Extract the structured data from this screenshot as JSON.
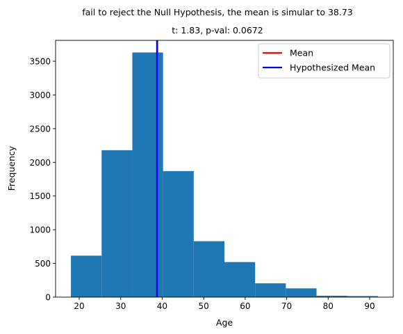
{
  "chart_data": {
    "type": "bar",
    "suptitle": "fail to reject the Null Hypothesis, the mean is simular to 38.73",
    "title": "t: 1.83, p-val: 0.0672",
    "xlabel": "Age",
    "ylabel": "Frequency",
    "xlim": [
      14.3,
      95.7
    ],
    "ylim": [
      0,
      3810
    ],
    "x_ticks": [
      20,
      30,
      40,
      50,
      60,
      70,
      80,
      90
    ],
    "y_ticks": [
      0,
      500,
      1000,
      1500,
      2000,
      2500,
      3000,
      3500
    ],
    "bin_edges": [
      18,
      25.4,
      32.8,
      40.2,
      47.6,
      55,
      62.4,
      69.8,
      77.2,
      84.6,
      92
    ],
    "values": [
      615,
      2180,
      3630,
      1870,
      830,
      520,
      205,
      130,
      20,
      15
    ],
    "bar_color": "#1f77b4",
    "mean": 38.85,
    "hypothesized_mean": 38.73,
    "legend_position": "top-right",
    "series": [
      {
        "name": "Mean",
        "color": "#ff0000",
        "value": 38.85
      },
      {
        "name": "Hypothesized Mean",
        "color": "#0000ff",
        "value": 38.73
      }
    ],
    "grid": false
  }
}
